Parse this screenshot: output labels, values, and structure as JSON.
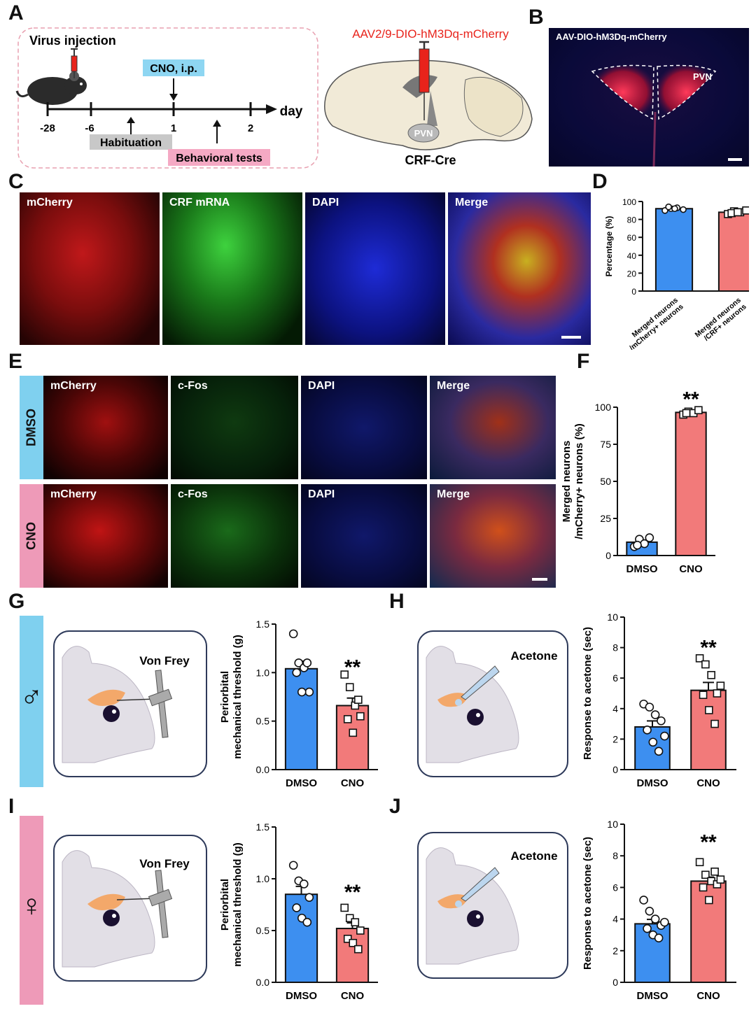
{
  "panels": {
    "A": {
      "letter": "A",
      "virus_injection": "Virus injection",
      "cno_box": "CNO, i.p.",
      "timeline_unit": "day",
      "ticks": [
        "-28",
        "-6",
        "1",
        "2"
      ],
      "habituation": "Habituation",
      "behavioral_tests": "Behavioral tests",
      "virus_name": "AAV2/9-DIO-hM3Dq-mCherry",
      "region": "PVN",
      "mouse_line": "CRF-Cre"
    },
    "B": {
      "letter": "B",
      "title": "AAV-DIO-hM3Dq-mCherry",
      "region": "PVN"
    },
    "C": {
      "letter": "C",
      "labels": [
        "mCherry",
        "CRF mRNA",
        "DAPI",
        "Merge"
      ]
    },
    "D": {
      "letter": "D"
    },
    "E": {
      "letter": "E",
      "rows": [
        "DMSO",
        "CNO"
      ],
      "labels": [
        "mCherry",
        "c-Fos",
        "DAPI",
        "Merge"
      ]
    },
    "F": {
      "letter": "F"
    },
    "G": {
      "letter": "G",
      "stimulus": "Von Frey",
      "sex_symbol": "♂"
    },
    "H": {
      "letter": "H",
      "stimulus": "Acetone"
    },
    "I": {
      "letter": "I",
      "stimulus": "Von Frey",
      "sex_symbol": "♀"
    },
    "J": {
      "letter": "J",
      "stimulus": "Acetone"
    }
  },
  "colors": {
    "dmso_bar": "#3d8ff0",
    "cno_bar": "#f27a7a",
    "male_side": "#7fd0ef",
    "female_side": "#ee9ab8",
    "virus_red": "#e8231b",
    "cno_box": "#8ed6f2",
    "habituation_box": "#c8c8c8",
    "behavioral_box": "#f5a9c4"
  },
  "chart_data": [
    {
      "panel": "D",
      "type": "bar",
      "categories": [
        "Merged neurons /mCherry+ neurons",
        "Merged neurons /CRF+ neurons"
      ],
      "values": [
        92,
        88
      ],
      "points": [
        [
          90,
          92,
          93,
          91,
          94,
          92
        ],
        [
          86,
          89,
          88,
          90,
          87,
          88
        ]
      ],
      "markers": [
        "circle",
        "square"
      ],
      "colors": [
        "#3d8ff0",
        "#f27a7a"
      ],
      "ylabel": "Percentage (%)",
      "ylim": [
        0,
        100
      ],
      "yticks": [
        0,
        20,
        40,
        60,
        80,
        100
      ],
      "significance": [
        "",
        ""
      ]
    },
    {
      "panel": "F",
      "type": "bar",
      "categories": [
        "DMSO",
        "CNO"
      ],
      "values": [
        9,
        96.5
      ],
      "points": [
        [
          6,
          11,
          8,
          12,
          7
        ],
        [
          95,
          97,
          96,
          98,
          96
        ]
      ],
      "markers": [
        "circle",
        "square"
      ],
      "colors": [
        "#3d8ff0",
        "#f27a7a"
      ],
      "ylabel": "Merged neurons /mCherry+ neurons (%)",
      "ylim": [
        0,
        100
      ],
      "yticks": [
        0,
        25,
        50,
        75,
        100
      ],
      "significance": [
        "",
        "**"
      ]
    },
    {
      "panel": "G",
      "type": "bar",
      "categories": [
        "DMSO",
        "CNO"
      ],
      "values": [
        1.04,
        0.66
      ],
      "points": [
        [
          1.4,
          1.1,
          1.05,
          0.8,
          1.0,
          0.8,
          1.1
        ],
        [
          0.98,
          0.85,
          0.66,
          0.55,
          0.52,
          0.38,
          0.72
        ]
      ],
      "markers": [
        "circle",
        "square"
      ],
      "colors": [
        "#3d8ff0",
        "#f27a7a"
      ],
      "ylabel": "Periorbital mechanical threshold (g)",
      "ylim": [
        0,
        1.5
      ],
      "yticks": [
        "0.0",
        "0.5",
        "1.0",
        "1.5"
      ],
      "significance": [
        "",
        "**"
      ]
    },
    {
      "panel": "H",
      "type": "bar",
      "categories": [
        "DMSO",
        "CNO"
      ],
      "values": [
        2.8,
        5.2
      ],
      "points": [
        [
          4.3,
          4.1,
          3.6,
          3.2,
          2.6,
          1.8,
          1.2,
          2.2
        ],
        [
          7.3,
          6.9,
          6.2,
          5.0,
          4.9,
          3.9,
          3.0,
          5.5
        ]
      ],
      "markers": [
        "circle",
        "square"
      ],
      "colors": [
        "#3d8ff0",
        "#f27a7a"
      ],
      "ylabel": "Response to acetone (sec)",
      "ylim": [
        0,
        10
      ],
      "yticks": [
        0,
        2,
        4,
        6,
        8,
        10
      ],
      "significance": [
        "",
        "**"
      ]
    },
    {
      "panel": "I",
      "type": "bar",
      "categories": [
        "DMSO",
        "CNO"
      ],
      "values": [
        0.85,
        0.52
      ],
      "points": [
        [
          1.13,
          0.98,
          0.95,
          0.82,
          0.72,
          0.62,
          0.58
        ],
        [
          0.72,
          0.62,
          0.58,
          0.5,
          0.42,
          0.38,
          0.32
        ]
      ],
      "markers": [
        "circle",
        "square"
      ],
      "colors": [
        "#3d8ff0",
        "#f27a7a"
      ],
      "ylabel": "Periorbital mechanical threshold (g)",
      "ylim": [
        0,
        1.5
      ],
      "yticks": [
        "0.0",
        "0.5",
        "1.0",
        "1.5"
      ],
      "significance": [
        "",
        "**"
      ]
    },
    {
      "panel": "J",
      "type": "bar",
      "categories": [
        "DMSO",
        "CNO"
      ],
      "values": [
        3.7,
        6.4
      ],
      "points": [
        [
          5.2,
          4.5,
          4.0,
          3.6,
          3.4,
          3.0,
          2.8,
          3.8
        ],
        [
          7.6,
          6.8,
          6.4,
          6.2,
          6.0,
          5.2,
          7.0,
          6.5
        ]
      ],
      "markers": [
        "circle",
        "square"
      ],
      "colors": [
        "#3d8ff0",
        "#f27a7a"
      ],
      "ylabel": "Response to acetone (sec)",
      "ylim": [
        0,
        10
      ],
      "yticks": [
        0,
        2,
        4,
        6,
        8,
        10
      ],
      "significance": [
        "",
        "**"
      ]
    }
  ]
}
